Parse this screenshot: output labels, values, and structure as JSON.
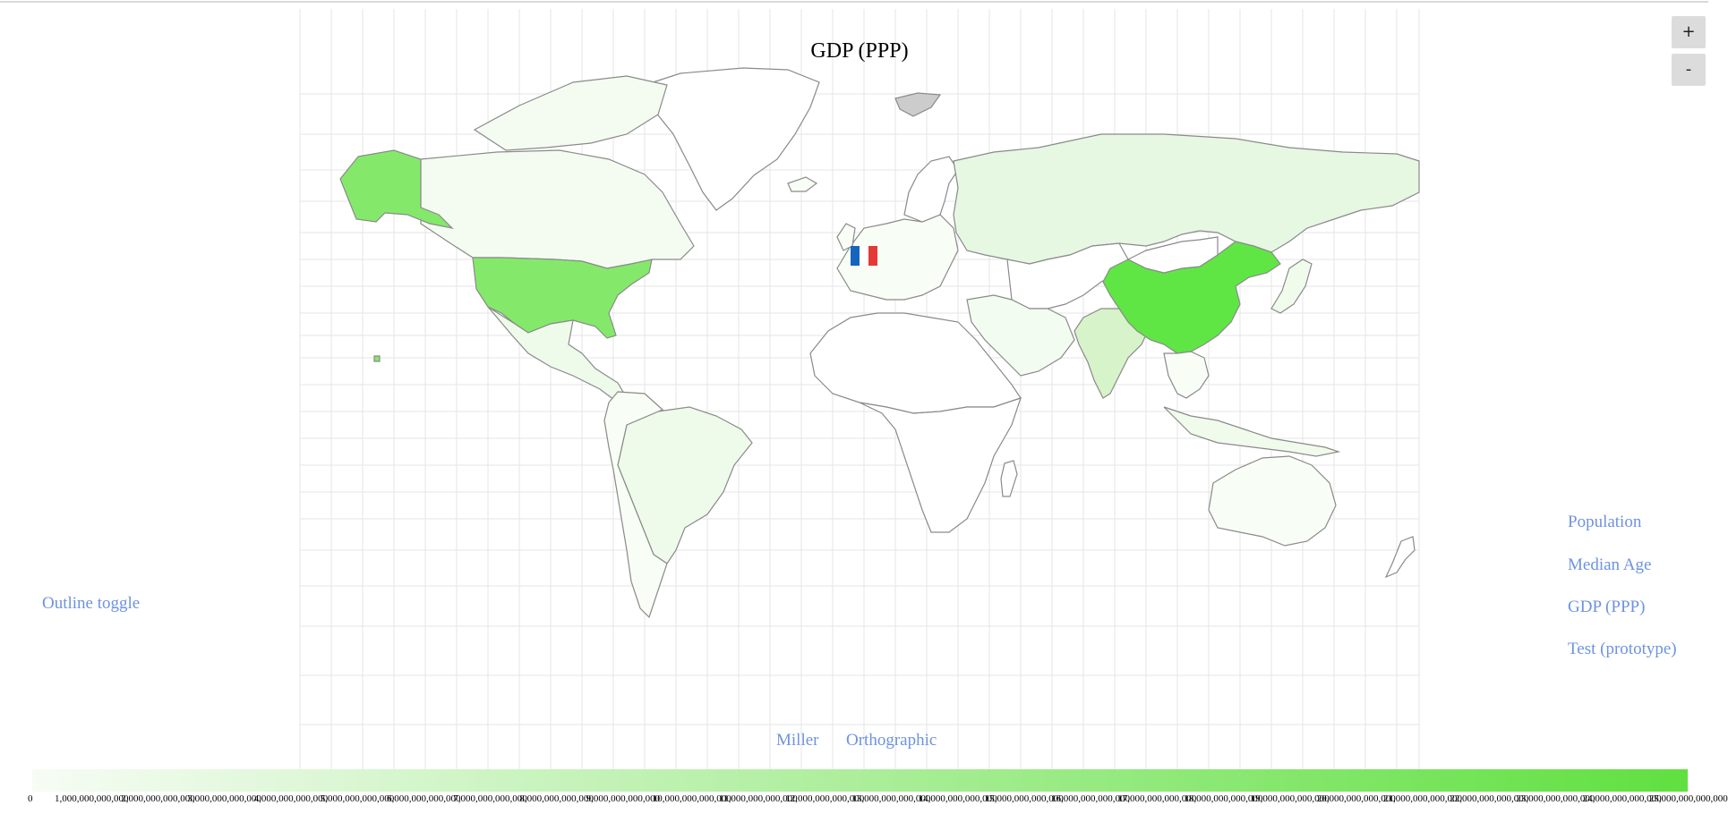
{
  "map": {
    "title": "GDP (PPP)",
    "projection_options": [
      "Miller",
      "Orthographic"
    ],
    "outline_toggle_label": "Outline toggle",
    "datasets": [
      "Population",
      "Median Age",
      "GDP (PPP)",
      "Test (prototype)"
    ],
    "zoom": {
      "in_label": "+",
      "out_label": "-"
    },
    "colors": {
      "low": "#f7fcf5",
      "mid": "#e6f7e2",
      "high": "#60e040",
      "usa_alaska": "#84e96a",
      "india": "#d6f3c9",
      "china": "#5fe644",
      "unknown_region": "#cccccc"
    },
    "legend": {
      "ticks": [
        "0",
        "1,000,000,000,000",
        "2,000,000,000,000",
        "3,000,000,000,000",
        "4,000,000,000,000",
        "5,000,000,000,000",
        "6,000,000,000,000",
        "7,000,000,000,000",
        "8,000,000,000,000",
        "9,000,000,000,000",
        "10,000,000,000,000",
        "11,000,000,000,000",
        "12,000,000,000,000",
        "13,000,000,000,000",
        "14,000,000,000,000",
        "15,000,000,000,000",
        "16,000,000,000,000",
        "17,000,000,000,000",
        "18,000,000,000,000",
        "19,000,000,000,000",
        "20,000,000,000,000",
        "21,000,000,000,000",
        "22,000,000,000,000",
        "23,000,000,000,000",
        "24,000,000,000,000",
        "25,000,000,000,000"
      ]
    }
  }
}
